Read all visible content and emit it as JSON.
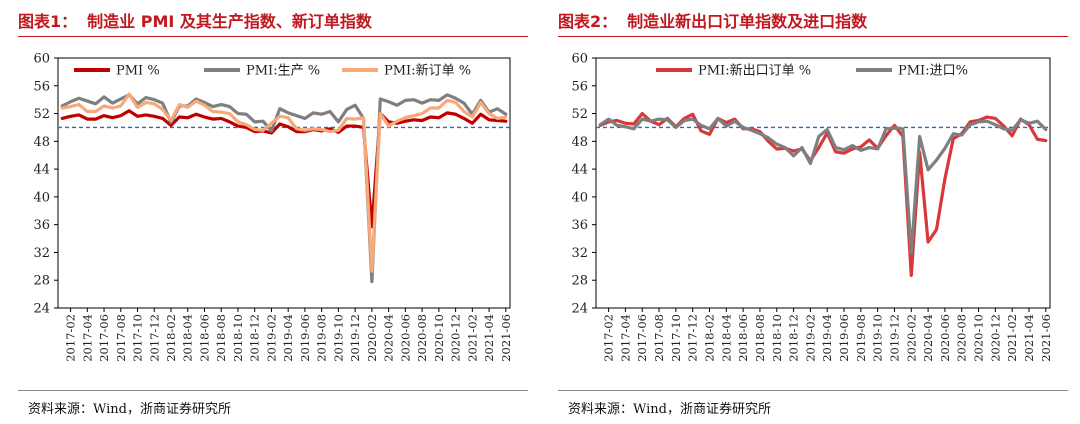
{
  "source_label": "资料来源：Wind，浙商证券研究所",
  "chart_data": [
    {
      "type": "line",
      "title_num": "图表1：",
      "title": "制造业 PMI 及其生产指数、新订单指数",
      "ylim": [
        24,
        60
      ],
      "yticks": [
        24,
        28,
        32,
        36,
        40,
        44,
        48,
        52,
        56,
        60
      ],
      "reference_line": 50,
      "reference_color": "#1f6fc9",
      "x_tick_labels": [
        "2017-02",
        "2017-04",
        "2017-06",
        "2017-08",
        "2017-10",
        "2017-12",
        "2018-02",
        "2018-04",
        "2018-06",
        "2018-08",
        "2018-10",
        "2018-12",
        "2019-02",
        "2019-04",
        "2019-06",
        "2019-08",
        "2019-10",
        "2019-12",
        "2020-02",
        "2020-04",
        "2020-06",
        "2020-08",
        "2020-10",
        "2020-12",
        "2021-02",
        "2021-04",
        "2021-06"
      ],
      "x": [
        "2017-01",
        "2017-02",
        "2017-03",
        "2017-04",
        "2017-05",
        "2017-06",
        "2017-07",
        "2017-08",
        "2017-09",
        "2017-10",
        "2017-11",
        "2017-12",
        "2018-01",
        "2018-02",
        "2018-03",
        "2018-04",
        "2018-05",
        "2018-06",
        "2018-07",
        "2018-08",
        "2018-09",
        "2018-10",
        "2018-11",
        "2018-12",
        "2019-01",
        "2019-02",
        "2019-03",
        "2019-04",
        "2019-05",
        "2019-06",
        "2019-07",
        "2019-08",
        "2019-09",
        "2019-10",
        "2019-11",
        "2019-12",
        "2020-01",
        "2020-02",
        "2020-03",
        "2020-04",
        "2020-05",
        "2020-06",
        "2020-07",
        "2020-08",
        "2020-09",
        "2020-10",
        "2020-11",
        "2020-12",
        "2021-01",
        "2021-02",
        "2021-03",
        "2021-04",
        "2021-05",
        "2021-06"
      ],
      "series": [
        {
          "name": "PMI %",
          "color": "#c00000",
          "values": [
            51.3,
            51.6,
            51.8,
            51.2,
            51.2,
            51.7,
            51.4,
            51.7,
            52.4,
            51.6,
            51.8,
            51.6,
            51.3,
            50.3,
            51.5,
            51.4,
            51.9,
            51.5,
            51.2,
            51.3,
            50.8,
            50.2,
            50.0,
            49.4,
            49.5,
            49.2,
            50.5,
            50.1,
            49.4,
            49.4,
            49.7,
            49.5,
            49.8,
            49.3,
            50.2,
            50.2,
            50.0,
            35.7,
            52.0,
            50.8,
            50.6,
            50.9,
            51.1,
            51.0,
            51.5,
            51.4,
            52.1,
            51.9,
            51.3,
            50.6,
            51.9,
            51.1,
            51.0,
            50.9
          ]
        },
        {
          "name": "PMI:生产 %",
          "color": "#7f7f7f",
          "values": [
            53.1,
            53.7,
            54.2,
            53.8,
            53.4,
            54.4,
            53.5,
            54.1,
            54.7,
            53.4,
            54.3,
            54.0,
            53.5,
            50.7,
            53.1,
            53.1,
            54.1,
            53.6,
            53.0,
            53.3,
            53.0,
            52.0,
            51.9,
            50.8,
            50.9,
            49.5,
            52.7,
            52.1,
            51.7,
            51.3,
            52.1,
            51.9,
            52.3,
            50.8,
            52.6,
            53.2,
            51.3,
            27.8,
            54.1,
            53.7,
            53.2,
            53.9,
            54.0,
            53.5,
            54.0,
            53.9,
            54.7,
            54.2,
            53.5,
            51.9,
            53.9,
            52.2,
            52.7,
            51.9
          ]
        },
        {
          "name": "PMI:新订单 %",
          "color": "#f8a97a",
          "values": [
            52.8,
            53.0,
            53.3,
            52.3,
            52.3,
            53.1,
            52.8,
            53.1,
            54.8,
            52.9,
            53.6,
            53.4,
            52.6,
            51.0,
            53.3,
            52.9,
            53.8,
            53.2,
            52.3,
            52.2,
            52.0,
            50.8,
            50.4,
            49.7,
            49.6,
            50.6,
            51.6,
            51.4,
            49.8,
            49.6,
            49.8,
            49.7,
            49.4,
            49.6,
            51.3,
            51.2,
            51.4,
            29.3,
            52.0,
            50.2,
            50.9,
            51.4,
            51.7,
            52.0,
            52.8,
            52.8,
            53.9,
            53.6,
            52.3,
            51.5,
            53.6,
            52.0,
            51.3,
            51.5
          ]
        }
      ]
    },
    {
      "type": "line",
      "title_num": "图表2：",
      "title": "制造业新出口订单指数及进口指数",
      "ylim": [
        24,
        60
      ],
      "yticks": [
        24,
        28,
        32,
        36,
        40,
        44,
        48,
        52,
        56,
        60
      ],
      "reference_line": 50,
      "reference_color": "#1f6fc9",
      "x_tick_labels": [
        "2017-02",
        "2017-04",
        "2017-06",
        "2017-08",
        "2017-10",
        "2017-12",
        "2018-02",
        "2018-04",
        "2018-06",
        "2018-08",
        "2018-10",
        "2018-12",
        "2019-02",
        "2019-04",
        "2019-06",
        "2019-08",
        "2019-10",
        "2019-12",
        "2020-02",
        "2020-04",
        "2020-06",
        "2020-08",
        "2020-10",
        "2020-12",
        "2021-02",
        "2021-04",
        "2021-06"
      ],
      "x": [
        "2017-01",
        "2017-02",
        "2017-03",
        "2017-04",
        "2017-05",
        "2017-06",
        "2017-07",
        "2017-08",
        "2017-09",
        "2017-10",
        "2017-11",
        "2017-12",
        "2018-01",
        "2018-02",
        "2018-03",
        "2018-04",
        "2018-05",
        "2018-06",
        "2018-07",
        "2018-08",
        "2018-09",
        "2018-10",
        "2018-11",
        "2018-12",
        "2019-01",
        "2019-02",
        "2019-03",
        "2019-04",
        "2019-05",
        "2019-06",
        "2019-07",
        "2019-08",
        "2019-09",
        "2019-10",
        "2019-11",
        "2019-12",
        "2020-01",
        "2020-02",
        "2020-03",
        "2020-04",
        "2020-05",
        "2020-06",
        "2020-07",
        "2020-08",
        "2020-09",
        "2020-10",
        "2020-11",
        "2020-12",
        "2021-01",
        "2021-02",
        "2021-03",
        "2021-04",
        "2021-05",
        "2021-06"
      ],
      "series": [
        {
          "name": "PMI:新出口订单 %",
          "color": "#d9383a",
          "values": [
            50.3,
            50.8,
            51.0,
            50.6,
            50.5,
            52.0,
            50.9,
            50.4,
            51.3,
            50.1,
            51.3,
            51.9,
            49.5,
            49.0,
            51.3,
            50.7,
            51.2,
            49.8,
            49.8,
            49.4,
            48.0,
            46.9,
            47.0,
            46.6,
            46.9,
            45.2,
            47.1,
            49.2,
            46.5,
            46.3,
            46.9,
            47.2,
            48.2,
            47.0,
            48.8,
            50.3,
            48.7,
            28.7,
            46.4,
            33.5,
            35.3,
            42.6,
            48.4,
            49.1,
            50.8,
            51.0,
            51.5,
            51.3,
            50.2,
            48.8,
            51.2,
            50.4,
            48.3,
            48.1
          ]
        },
        {
          "name": "PMI:进口%",
          "color": "#7f7f7f",
          "values": [
            50.4,
            51.2,
            50.3,
            50.1,
            49.8,
            51.2,
            50.9,
            51.2,
            51.1,
            50.0,
            51.0,
            51.2,
            50.3,
            49.8,
            51.3,
            50.2,
            50.9,
            50.0,
            49.6,
            49.1,
            48.5,
            47.6,
            47.1,
            45.9,
            47.1,
            44.8,
            48.7,
            49.7,
            47.1,
            46.8,
            47.4,
            46.7,
            47.1,
            46.9,
            49.8,
            49.9,
            49.8,
            31.9,
            48.7,
            43.9,
            45.3,
            47.0,
            49.1,
            48.9,
            50.4,
            50.8,
            50.9,
            50.4,
            49.8,
            49.6,
            51.1,
            50.6,
            50.9,
            49.7
          ]
        }
      ]
    }
  ]
}
